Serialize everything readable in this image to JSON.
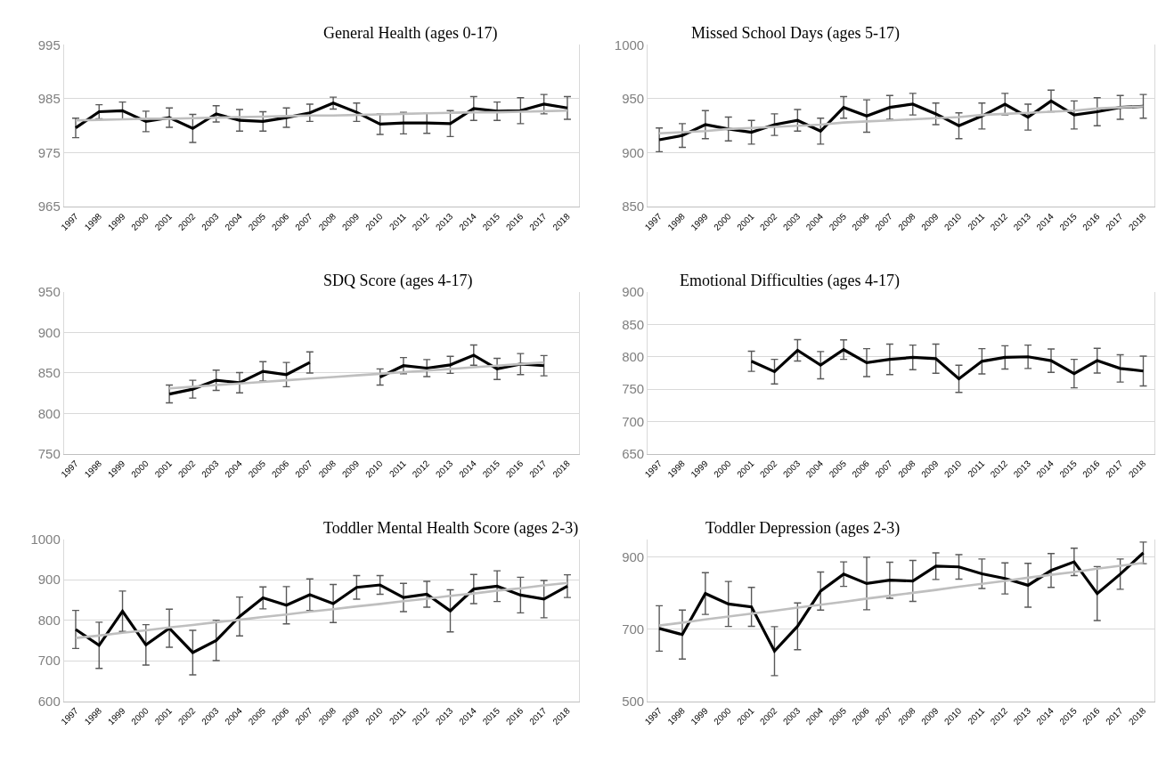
{
  "chart_data": [
    {
      "type": "line",
      "title": "General Health (ages 0-17)",
      "categories": [
        "1997",
        "1998",
        "1999",
        "2000",
        "2001",
        "2002",
        "2003",
        "2004",
        "2005",
        "2006",
        "2007",
        "2008",
        "2009",
        "2010",
        "2011",
        "2012",
        "2013",
        "2014",
        "2015",
        "2016",
        "2017",
        "2018"
      ],
      "ylim": [
        965,
        995
      ],
      "yticks": [
        965,
        975,
        985,
        995
      ],
      "grid": "y",
      "marker": "none",
      "line_style": "solid",
      "series": [
        {
          "color": "#000000",
          "values": [
            979.6,
            982.6,
            982.8,
            980.8,
            981.5,
            979.5,
            982.2,
            981.0,
            980.8,
            981.5,
            982.4,
            984.2,
            982.5,
            980.3,
            980.5,
            980.5,
            980.4,
            983.2,
            982.7,
            982.8,
            984.0,
            983.3
          ],
          "errors": [
            1.8,
            1.3,
            1.6,
            1.9,
            1.8,
            2.6,
            1.5,
            2.0,
            1.8,
            1.8,
            1.6,
            1.1,
            1.7,
            1.9,
            2.0,
            1.9,
            2.4,
            2.2,
            1.7,
            2.4,
            1.8,
            2.1
          ]
        },
        {
          "type": "line",
          "color": "#bfbfbf",
          "values": [
            981.0,
            981.1,
            981.2,
            981.3,
            981.3,
            981.4,
            981.5,
            981.6,
            981.7,
            981.8,
            981.9,
            981.9,
            982.0,
            982.1,
            982.2,
            982.3,
            982.4,
            982.5,
            982.5,
            982.6,
            982.7,
            982.8
          ]
        }
      ]
    },
    {
      "type": "line",
      "title": "Missed School Days (ages 5-17)",
      "categories": [
        "1997",
        "1998",
        "1999",
        "2000",
        "2001",
        "2002",
        "2003",
        "2004",
        "2005",
        "2006",
        "2007",
        "2008",
        "2009",
        "2010",
        "2011",
        "2012",
        "2013",
        "2014",
        "2015",
        "2016",
        "2017",
        "2018"
      ],
      "ylim": [
        850,
        1000
      ],
      "yticks": [
        850,
        900,
        950,
        1000
      ],
      "grid": "y",
      "marker": "none",
      "line_style": "solid",
      "series": [
        {
          "color": "#000000",
          "values": [
            912,
            916,
            926,
            922,
            919,
            926,
            930,
            920,
            942,
            934,
            942,
            945,
            936,
            925,
            934,
            945,
            933,
            948,
            935,
            938,
            942,
            943
          ],
          "errors": [
            11,
            11,
            13,
            11,
            11,
            10,
            10,
            12,
            10,
            15,
            11,
            10,
            10,
            12,
            12,
            10,
            12,
            10,
            13,
            13,
            11,
            11
          ]
        },
        {
          "type": "line",
          "color": "#bfbfbf",
          "values": [
            918,
            919,
            920,
            922,
            923,
            924,
            925,
            926,
            928,
            929,
            930,
            931,
            932,
            933,
            935,
            936,
            937,
            938,
            939,
            941,
            942,
            943
          ]
        }
      ]
    },
    {
      "type": "line",
      "title": "SDQ Score (ages 4-17)",
      "categories": [
        "1997",
        "1998",
        "1999",
        "2000",
        "2001",
        "2002",
        "2003",
        "2004",
        "2005",
        "2006",
        "2007",
        "2008",
        "2009",
        "2010",
        "2011",
        "2012",
        "2013",
        "2014",
        "2015",
        "2016",
        "2017",
        "2018"
      ],
      "ylim": [
        750,
        950
      ],
      "yticks": [
        750,
        800,
        850,
        900,
        950
      ],
      "grid": "y",
      "marker": "none",
      "line_style": "solid",
      "series": [
        {
          "color": "#000000",
          "values": [
            null,
            null,
            null,
            null,
            824,
            830,
            841,
            838,
            852,
            848,
            863,
            null,
            null,
            845,
            859,
            856,
            860,
            872,
            855,
            861,
            859,
            null
          ],
          "errors": [
            null,
            null,
            null,
            null,
            11,
            11,
            12.5,
            12.5,
            12,
            15,
            13,
            null,
            null,
            10,
            10,
            10.5,
            10.5,
            12.5,
            13,
            13,
            12.5,
            null
          ]
        },
        {
          "type": "line",
          "color": "#bfbfbf",
          "values": [
            null,
            null,
            null,
            null,
            831,
            833,
            835,
            837,
            839,
            841,
            843,
            845,
            847,
            849,
            851,
            853,
            855,
            857,
            859,
            861,
            863,
            null
          ]
        }
      ]
    },
    {
      "type": "line",
      "title": "Emotional Difficulties (ages 4-17)",
      "categories": [
        "1997",
        "1998",
        "1999",
        "2000",
        "2001",
        "2002",
        "2003",
        "2004",
        "2005",
        "2006",
        "2007",
        "2008",
        "2009",
        "2010",
        "2011",
        "2012",
        "2013",
        "2014",
        "2015",
        "2016",
        "2017",
        "2018"
      ],
      "ylim": [
        650,
        900
      ],
      "yticks": [
        650,
        700,
        750,
        800,
        850,
        900
      ],
      "grid": "y",
      "marker": "none",
      "line_style": "solid",
      "series": [
        {
          "color": "#000000",
          "values": [
            null,
            null,
            null,
            null,
            793,
            777,
            810,
            787,
            811,
            791,
            796,
            799,
            797,
            766,
            793,
            799,
            800,
            794,
            774,
            794,
            782,
            778
          ],
          "errors": [
            null,
            null,
            null,
            null,
            15.5,
            19,
            16.5,
            21,
            15,
            21.5,
            23.5,
            19,
            22.5,
            21,
            19.5,
            18,
            18,
            18,
            22,
            19,
            21,
            23
          ]
        }
      ]
    },
    {
      "type": "line",
      "title": "Toddler Mental Health Score (ages 2-3)",
      "categories": [
        "1997",
        "1998",
        "1999",
        "2000",
        "2001",
        "2002",
        "2003",
        "2004",
        "2005",
        "2006",
        "2007",
        "2008",
        "2009",
        "2010",
        "2011",
        "2012",
        "2013",
        "2014",
        "2015",
        "2016",
        "2017",
        "2018"
      ],
      "ylim": [
        600,
        1000
      ],
      "yticks": [
        600,
        700,
        800,
        900,
        1000
      ],
      "grid": "y",
      "marker": "none",
      "line_style": "solid",
      "series": [
        {
          "color": "#000000",
          "values": [
            777,
            738,
            822,
            739,
            780,
            720,
            750,
            809,
            855,
            837,
            863,
            841,
            881,
            887,
            856,
            864,
            823,
            877,
            884,
            862,
            852,
            884
          ],
          "errors": [
            47,
            57,
            50,
            50,
            47,
            55,
            50,
            48,
            27,
            46,
            39,
            47,
            29,
            23,
            35,
            32,
            52,
            36,
            38,
            44,
            46,
            28
          ]
        },
        {
          "type": "line",
          "color": "#bfbfbf",
          "values": [
            756,
            762,
            769,
            775,
            782,
            788,
            795,
            801,
            808,
            814,
            821,
            827,
            834,
            840,
            847,
            853,
            860,
            866,
            873,
            879,
            886,
            892
          ]
        }
      ]
    },
    {
      "type": "line",
      "title": "Toddler Depression (ages 2-3)",
      "categories": [
        "1997",
        "1998",
        "1999",
        "2000",
        "2001",
        "2002",
        "2003",
        "2004",
        "2005",
        "2006",
        "2007",
        "2008",
        "2009",
        "2010",
        "2011",
        "2012",
        "2013",
        "2014",
        "2015",
        "2016",
        "2017",
        "2018"
      ],
      "ylim": [
        500,
        950
      ],
      "yticks": [
        500,
        700,
        900
      ],
      "grid": "y",
      "marker": "none",
      "line_style": "solid",
      "series": [
        {
          "color": "#000000",
          "values": [
            702,
            685,
            799,
            770,
            762,
            639,
            708,
            806,
            853,
            827,
            836,
            834,
            875,
            873,
            854,
            841,
            822,
            863,
            887,
            799,
            853,
            912
          ],
          "errors": [
            63,
            68,
            58,
            62.5,
            54,
            68,
            65,
            53,
            34,
            73,
            50,
            57,
            37,
            34,
            41,
            43,
            61,
            47,
            38,
            75,
            42,
            30
          ]
        },
        {
          "type": "line",
          "color": "#bfbfbf",
          "values": [
            710,
            718,
            727,
            735,
            743,
            751,
            760,
            768,
            776,
            785,
            793,
            801,
            809,
            818,
            826,
            834,
            843,
            851,
            859,
            868,
            876,
            884
          ]
        }
      ]
    }
  ]
}
